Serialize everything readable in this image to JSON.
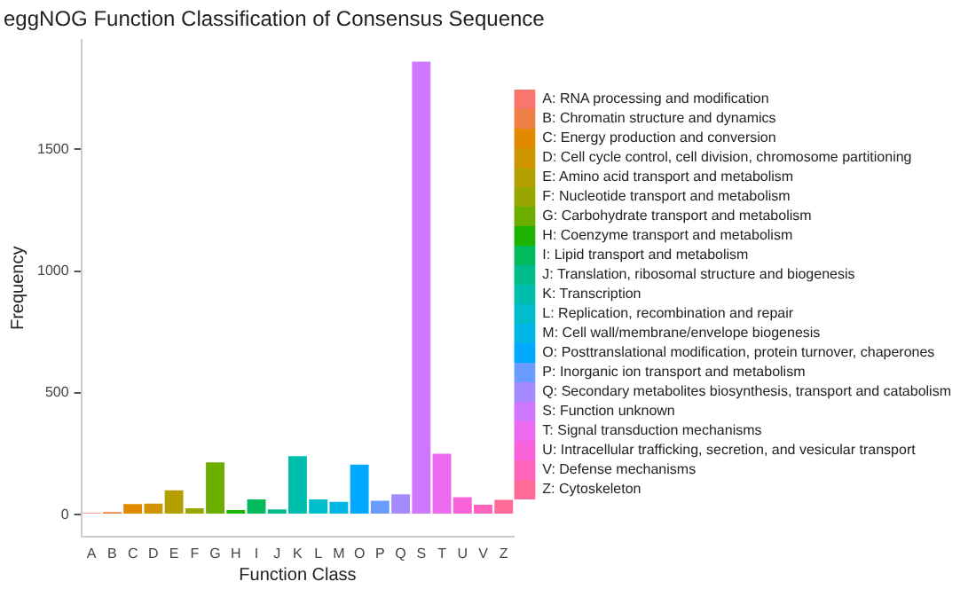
{
  "chart_data": {
    "type": "bar",
    "title": "eggNOG Function Classification of Consensus Sequence",
    "xlabel": "Function Class",
    "ylabel": "Frequency",
    "categories": [
      "A",
      "B",
      "C",
      "D",
      "E",
      "F",
      "G",
      "H",
      "I",
      "J",
      "K",
      "L",
      "M",
      "O",
      "P",
      "Q",
      "S",
      "T",
      "U",
      "V",
      "Z"
    ],
    "series": [
      {
        "name": "A: RNA processing and modification",
        "color": "#F8766D",
        "values": [
          7,
          null,
          null,
          null,
          null,
          null,
          null,
          null,
          null,
          null,
          null,
          null,
          null,
          null,
          null,
          null,
          null,
          null,
          null,
          null,
          null
        ]
      },
      {
        "name": "B: Chromatin structure and dynamics",
        "color": "#EE7F46",
        "values": [
          null,
          10,
          null,
          null,
          null,
          null,
          null,
          null,
          null,
          null,
          null,
          null,
          null,
          null,
          null,
          null,
          null,
          null,
          null,
          null,
          null
        ]
      },
      {
        "name": "C: Energy production and conversion",
        "color": "#E18A00",
        "values": [
          null,
          null,
          43,
          null,
          null,
          null,
          null,
          null,
          null,
          null,
          null,
          null,
          null,
          null,
          null,
          null,
          null,
          null,
          null,
          null,
          null
        ]
      },
      {
        "name": "D: Cell cycle control, cell division, chromosome partitioning",
        "color": "#D09400",
        "values": [
          null,
          null,
          null,
          45,
          null,
          null,
          null,
          null,
          null,
          null,
          null,
          null,
          null,
          null,
          null,
          null,
          null,
          null,
          null,
          null,
          null
        ]
      },
      {
        "name": "E: Amino acid transport and metabolism",
        "color": "#B49E00",
        "values": [
          null,
          null,
          null,
          null,
          100,
          null,
          null,
          null,
          null,
          null,
          null,
          null,
          null,
          null,
          null,
          null,
          null,
          null,
          null,
          null,
          null
        ]
      },
      {
        "name": "F: Nucleotide transport and metabolism",
        "color": "#98A600",
        "values": [
          null,
          null,
          null,
          null,
          null,
          26,
          null,
          null,
          null,
          null,
          null,
          null,
          null,
          null,
          null,
          null,
          null,
          null,
          null,
          null,
          null
        ]
      },
      {
        "name": "G: Carbohydrate transport and metabolism",
        "color": "#6CAE00",
        "values": [
          null,
          null,
          null,
          null,
          null,
          null,
          214,
          null,
          null,
          null,
          null,
          null,
          null,
          null,
          null,
          null,
          null,
          null,
          null,
          null,
          null
        ]
      },
      {
        "name": "H: Coenzyme transport and metabolism",
        "color": "#1CB400",
        "values": [
          null,
          null,
          null,
          null,
          null,
          null,
          null,
          19,
          null,
          null,
          null,
          null,
          null,
          null,
          null,
          null,
          null,
          null,
          null,
          null,
          null
        ]
      },
      {
        "name": "I: Lipid transport and metabolism",
        "color": "#00BA5C",
        "values": [
          null,
          null,
          null,
          null,
          null,
          null,
          null,
          null,
          62,
          null,
          null,
          null,
          null,
          null,
          null,
          null,
          null,
          null,
          null,
          null,
          null
        ]
      },
      {
        "name": "J: Translation, ribosomal structure and biogenesis",
        "color": "#00BC8A",
        "values": [
          null,
          null,
          null,
          null,
          null,
          null,
          null,
          null,
          null,
          21,
          null,
          null,
          null,
          null,
          null,
          null,
          null,
          null,
          null,
          null,
          null
        ]
      },
      {
        "name": "K: Transcription",
        "color": "#00BEAD",
        "values": [
          null,
          null,
          null,
          null,
          null,
          null,
          null,
          null,
          null,
          null,
          240,
          null,
          null,
          null,
          null,
          null,
          null,
          null,
          null,
          null,
          null
        ]
      },
      {
        "name": "L: Replication, recombination and repair",
        "color": "#00BDCB",
        "values": [
          null,
          null,
          null,
          null,
          null,
          null,
          null,
          null,
          null,
          null,
          null,
          62,
          null,
          null,
          null,
          null,
          null,
          null,
          null,
          null,
          null
        ]
      },
      {
        "name": "M: Cell wall/membrane/envelope biogenesis",
        "color": "#00B6E5",
        "values": [
          null,
          null,
          null,
          null,
          null,
          null,
          null,
          null,
          null,
          null,
          null,
          null,
          52,
          null,
          null,
          null,
          null,
          null,
          null,
          null,
          null
        ]
      },
      {
        "name": "O: Posttranslational modification, protein turnover, chaperones",
        "color": "#00A8FF",
        "values": [
          null,
          null,
          null,
          null,
          null,
          null,
          null,
          null,
          null,
          null,
          null,
          null,
          null,
          205,
          null,
          null,
          null,
          null,
          null,
          null,
          null
        ]
      },
      {
        "name": "P: Inorganic ion transport and metabolism",
        "color": "#6A9CFF",
        "values": [
          null,
          null,
          null,
          null,
          null,
          null,
          null,
          null,
          null,
          null,
          null,
          null,
          null,
          null,
          57,
          null,
          null,
          null,
          null,
          null,
          null
        ]
      },
      {
        "name": "Q: Secondary metabolites biosynthesis, transport and catabolism",
        "color": "#A58AFF",
        "values": [
          null,
          null,
          null,
          null,
          null,
          null,
          null,
          null,
          null,
          null,
          null,
          null,
          null,
          null,
          null,
          83,
          null,
          null,
          null,
          null,
          null
        ]
      },
      {
        "name": "S: Function unknown",
        "color": "#CF78FF",
        "values": [
          null,
          null,
          null,
          null,
          null,
          null,
          null,
          null,
          null,
          null,
          null,
          null,
          null,
          null,
          null,
          null,
          1860,
          null,
          null,
          null,
          null
        ]
      },
      {
        "name": "T: Signal transduction mechanisms",
        "color": "#EB6AF0",
        "values": [
          null,
          null,
          null,
          null,
          null,
          null,
          null,
          null,
          null,
          null,
          null,
          null,
          null,
          null,
          null,
          null,
          null,
          250,
          null,
          null,
          null
        ]
      },
      {
        "name": "U: Intracellular trafficking, secretion, and vesicular transport",
        "color": "#F963DA",
        "values": [
          null,
          null,
          null,
          null,
          null,
          null,
          null,
          null,
          null,
          null,
          null,
          null,
          null,
          null,
          null,
          null,
          null,
          null,
          71,
          null,
          null
        ]
      },
      {
        "name": "V: Defense mechanisms",
        "color": "#FF63BB",
        "values": [
          null,
          null,
          null,
          null,
          null,
          null,
          null,
          null,
          null,
          null,
          null,
          null,
          null,
          null,
          null,
          null,
          null,
          null,
          null,
          40,
          null
        ]
      },
      {
        "name": "Z: Cytoskeleton",
        "color": "#FF6A96",
        "values": [
          null,
          null,
          null,
          null,
          null,
          null,
          null,
          null,
          null,
          null,
          null,
          null,
          null,
          null,
          null,
          null,
          null,
          null,
          null,
          null,
          60
        ]
      }
    ],
    "ylim": [
      -90,
      1950
    ],
    "yticks": [
      0,
      500,
      1000,
      1500
    ],
    "grid": false,
    "legend": "right"
  }
}
